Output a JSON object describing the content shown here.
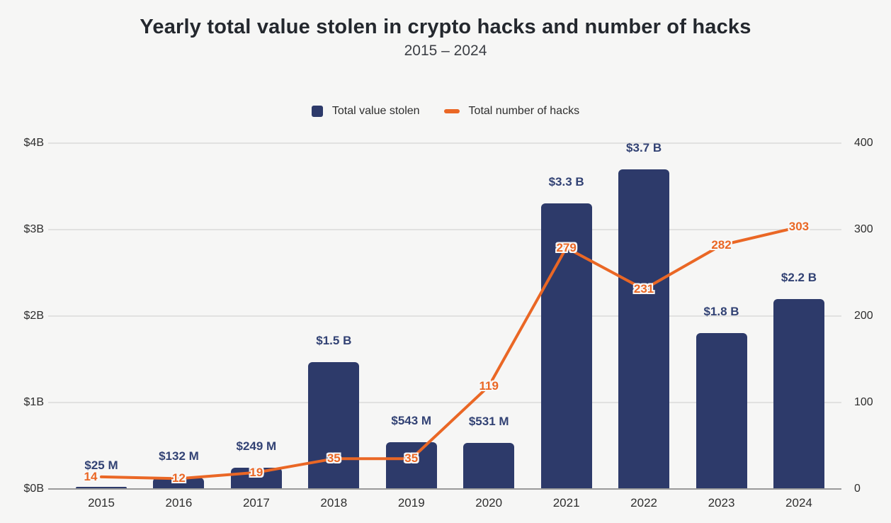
{
  "page": {
    "background_color": "#f6f6f5"
  },
  "chart_data": {
    "type": "combo",
    "title": "Yearly total value stolen in crypto hacks and number of hacks",
    "subtitle": "2015 – 2024",
    "categories": [
      "2015",
      "2016",
      "2017",
      "2018",
      "2019",
      "2020",
      "2021",
      "2022",
      "2023",
      "2024"
    ],
    "series": [
      {
        "name": "Total value stolen",
        "type": "bar",
        "axis": "left",
        "unit": "USD billions",
        "color": "#2d3a6a",
        "values": [
          0.025,
          0.132,
          0.249,
          1.47,
          0.543,
          0.531,
          3.3,
          3.7,
          1.8,
          2.2
        ],
        "value_labels": [
          "$25 M",
          "$132 M",
          "$249 M",
          "$1.5 B",
          "$543 M",
          "$531 M",
          "$3.3 B",
          "$3.7 B",
          "$1.8 B",
          "$2.2 B"
        ]
      },
      {
        "name": "Total number of hacks",
        "type": "line",
        "axis": "right",
        "unit": "hacks",
        "color": "#ea6725",
        "values": [
          14,
          12,
          19,
          35,
          35,
          119,
          279,
          231,
          282,
          303
        ],
        "value_labels": [
          "14",
          "12",
          "19",
          "35",
          "35",
          "119",
          "279",
          "231",
          "282",
          "303"
        ]
      }
    ],
    "left_axis": {
      "tick_labels": [
        "$0B",
        "$1B",
        "$2B",
        "$3B",
        "$4B"
      ],
      "range": [
        0,
        4
      ]
    },
    "right_axis": {
      "tick_labels": [
        "0",
        "100",
        "200",
        "300",
        "400"
      ],
      "range": [
        0,
        400
      ]
    },
    "grid": true,
    "legend_position": "top-center"
  }
}
